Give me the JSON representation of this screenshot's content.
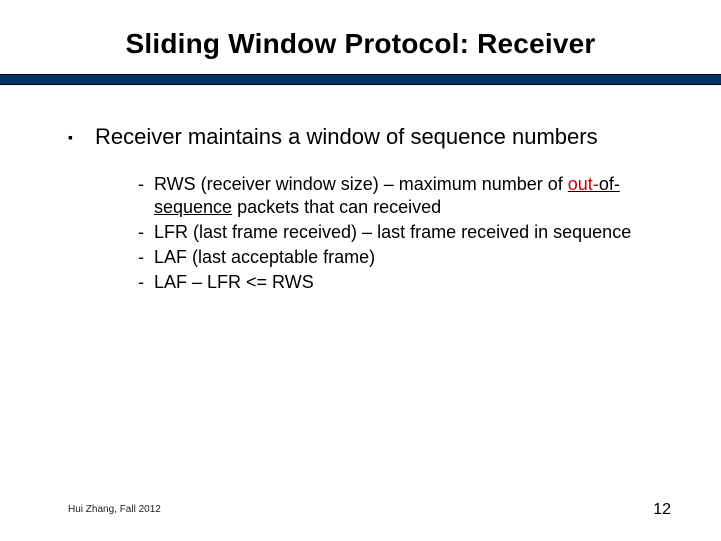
{
  "title": "Sliding Window Protocol: Receiver",
  "divider_color": "#003366",
  "main_bullet": {
    "text": "Receiver maintains a window of sequence numbers"
  },
  "sub_items": [
    {
      "prefix": "RWS (receiver window size) – maximum number of ",
      "highlight": "out-of-sequence",
      "highlight_red_part": "out-",
      "highlight_black_part": "of-sequence",
      "suffix": " packets that can received"
    },
    {
      "text": "LFR (last frame received) – last frame received in sequence"
    },
    {
      "text": "LAF (last acceptable frame)"
    },
    {
      "text": "LAF – LFR <= RWS"
    }
  ],
  "footer": {
    "left": "Hui Zhang, Fall 2012",
    "page": "12"
  }
}
